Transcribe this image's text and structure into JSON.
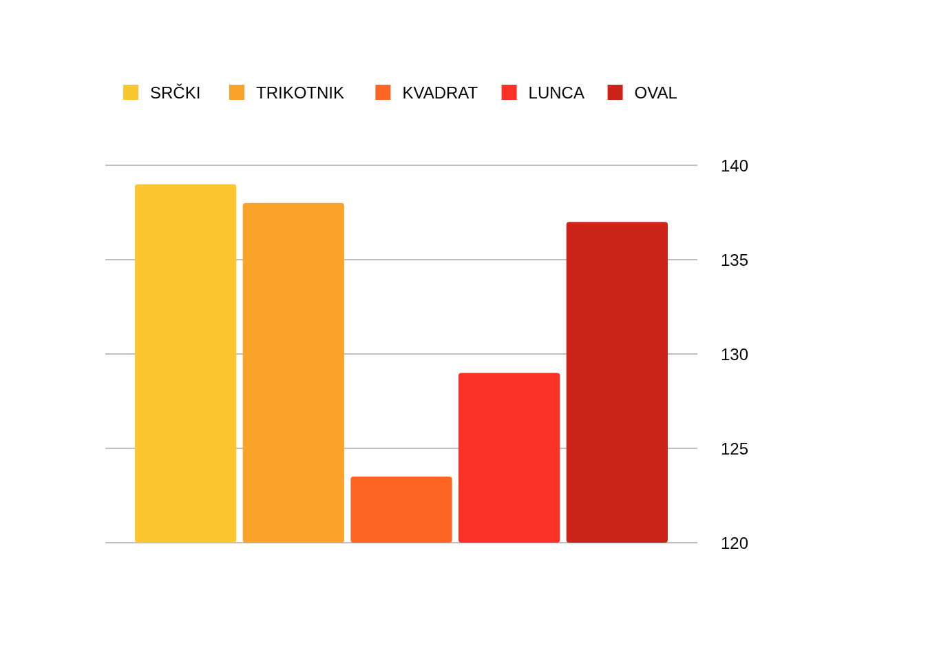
{
  "chart_data": {
    "type": "bar",
    "categories": [
      null
    ],
    "series": [
      {
        "name": "SRČKI",
        "color": "#fcc631",
        "values": [
          139
        ]
      },
      {
        "name": "TRIKOTNIK",
        "color": "#fba22b",
        "values": [
          138
        ]
      },
      {
        "name": "KVADRAT",
        "color": "#fd6522",
        "values": [
          123.5
        ]
      },
      {
        "name": "LUNCA",
        "color": "#fb3126",
        "values": [
          129
        ]
      },
      {
        "name": "OVAL",
        "color": "#cc2419",
        "values": [
          137
        ]
      }
    ],
    "ylim": [
      120,
      140
    ],
    "yticks": [
      120,
      125,
      130,
      135,
      140
    ],
    "grid": "y",
    "legend": "top left"
  }
}
